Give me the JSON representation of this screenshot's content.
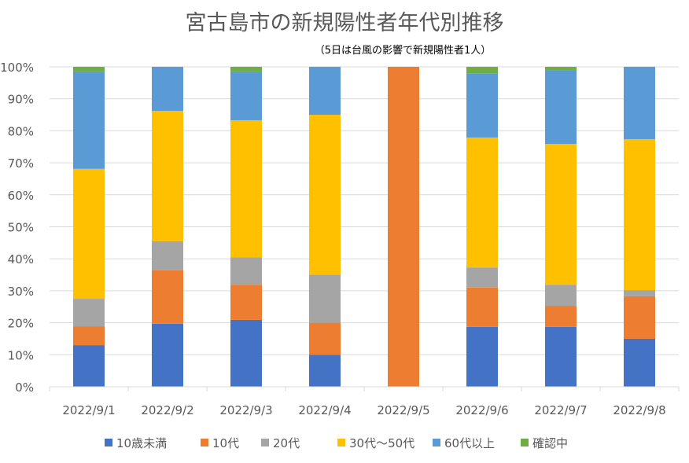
{
  "chart_data": {
    "type": "bar",
    "stacked": true,
    "title": "宮古島市の新規陽性者年代別推移",
    "subtitle": "（5日は台風の影響で新規陽性者1人）",
    "xlabel": "",
    "ylabel": "",
    "ylim": [
      0,
      100
    ],
    "yticks": [
      "0%",
      "10%",
      "20%",
      "30%",
      "40%",
      "50%",
      "60%",
      "70%",
      "80%",
      "90%",
      "100%"
    ],
    "grid": true,
    "legend_position": "bottom",
    "categories": [
      "2022/9/1",
      "2022/9/2",
      "2022/9/3",
      "2022/9/4",
      "2022/9/5",
      "2022/9/6",
      "2022/9/7",
      "2022/9/8"
    ],
    "series": [
      {
        "name": "10歳未満",
        "color": "#4472C4",
        "values": [
          13.0,
          19.7,
          20.9,
          10.0,
          0,
          18.7,
          18.7,
          15.0
        ]
      },
      {
        "name": "10代",
        "color": "#ED7D31",
        "values": [
          5.9,
          16.7,
          11.0,
          10.0,
          100,
          12.3,
          6.6,
          13.3
        ]
      },
      {
        "name": "20代",
        "color": "#A5A5A5",
        "values": [
          8.6,
          9.1,
          8.6,
          15.0,
          0,
          6.3,
          6.6,
          1.9
        ]
      },
      {
        "name": "30代～50代",
        "color": "#FFC000",
        "values": [
          40.6,
          40.7,
          42.8,
          50.0,
          0,
          40.6,
          44.0,
          47.2
        ]
      },
      {
        "name": "60代以上",
        "color": "#5B9BD5",
        "values": [
          30.4,
          13.8,
          15.2,
          15.0,
          0,
          20.1,
          23.1,
          22.6
        ]
      },
      {
        "name": "確認中",
        "color": "#70AD47",
        "values": [
          1.5,
          0,
          1.5,
          0,
          0,
          2.0,
          1.0,
          0
        ]
      }
    ]
  }
}
